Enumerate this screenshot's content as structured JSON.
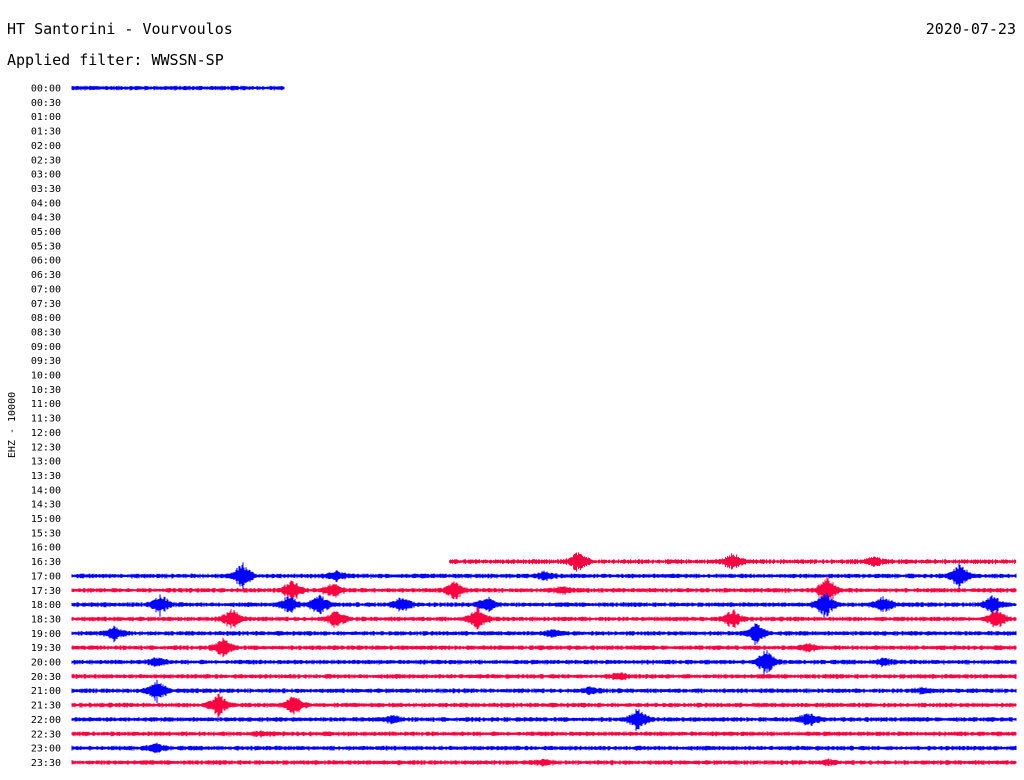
{
  "header": {
    "station": "HT Santorini - Vourvoulos",
    "date": "2020-07-23",
    "filter": "Applied filter: WWSSN-SP"
  },
  "chart_data": {
    "type": "line",
    "title": "HT Santorini - Vourvoulos",
    "subtitle": "Applied filter: WWSSN-SP",
    "ylabel": "EHZ - 10000",
    "xlabel": "",
    "grid": false,
    "colors": [
      "#0000ff",
      "#ff0040"
    ],
    "rows": [
      {
        "label": "00:00",
        "start": 0.0,
        "end": 0.225,
        "events": []
      },
      {
        "label": "00:30",
        "start": 0,
        "end": 0,
        "events": []
      },
      {
        "label": "01:00",
        "start": 0,
        "end": 0,
        "events": []
      },
      {
        "label": "01:30",
        "start": 0,
        "end": 0,
        "events": []
      },
      {
        "label": "02:00",
        "start": 0,
        "end": 0,
        "events": []
      },
      {
        "label": "02:30",
        "start": 0,
        "end": 0,
        "events": []
      },
      {
        "label": "03:00",
        "start": 0,
        "end": 0,
        "events": []
      },
      {
        "label": "03:30",
        "start": 0,
        "end": 0,
        "events": []
      },
      {
        "label": "04:00",
        "start": 0,
        "end": 0,
        "events": []
      },
      {
        "label": "04:30",
        "start": 0,
        "end": 0,
        "events": []
      },
      {
        "label": "05:00",
        "start": 0,
        "end": 0,
        "events": []
      },
      {
        "label": "05:30",
        "start": 0,
        "end": 0,
        "events": []
      },
      {
        "label": "06:00",
        "start": 0,
        "end": 0,
        "events": []
      },
      {
        "label": "06:30",
        "start": 0,
        "end": 0,
        "events": []
      },
      {
        "label": "07:00",
        "start": 0,
        "end": 0,
        "events": []
      },
      {
        "label": "07:30",
        "start": 0,
        "end": 0,
        "events": []
      },
      {
        "label": "08:00",
        "start": 0,
        "end": 0,
        "events": []
      },
      {
        "label": "08:30",
        "start": 0,
        "end": 0,
        "events": []
      },
      {
        "label": "09:00",
        "start": 0,
        "end": 0,
        "events": []
      },
      {
        "label": "09:30",
        "start": 0,
        "end": 0,
        "events": []
      },
      {
        "label": "10:00",
        "start": 0,
        "end": 0,
        "events": []
      },
      {
        "label": "10:30",
        "start": 0,
        "end": 0,
        "events": []
      },
      {
        "label": "11:00",
        "start": 0,
        "end": 0,
        "events": []
      },
      {
        "label": "11:30",
        "start": 0,
        "end": 0,
        "events": []
      },
      {
        "label": "12:00",
        "start": 0,
        "end": 0,
        "events": []
      },
      {
        "label": "12:30",
        "start": 0,
        "end": 0,
        "events": []
      },
      {
        "label": "13:00",
        "start": 0,
        "end": 0,
        "events": []
      },
      {
        "label": "13:30",
        "start": 0,
        "end": 0,
        "events": []
      },
      {
        "label": "14:00",
        "start": 0,
        "end": 0,
        "events": []
      },
      {
        "label": "14:30",
        "start": 0,
        "end": 0,
        "events": []
      },
      {
        "label": "15:00",
        "start": 0,
        "end": 0,
        "events": []
      },
      {
        "label": "15:30",
        "start": 0,
        "end": 0,
        "events": []
      },
      {
        "label": "16:00",
        "start": 0,
        "end": 0,
        "events": []
      },
      {
        "label": "16:30",
        "start": 0.4,
        "end": 1.0,
        "events": [
          [
            0.537,
            10
          ],
          [
            0.7,
            8
          ],
          [
            0.85,
            4
          ]
        ]
      },
      {
        "label": "17:00",
        "start": 0.0,
        "end": 1.0,
        "events": [
          [
            0.18,
            12
          ],
          [
            0.94,
            11
          ],
          [
            0.28,
            4
          ],
          [
            0.5,
            3
          ]
        ]
      },
      {
        "label": "17:30",
        "start": 0.0,
        "end": 1.0,
        "events": [
          [
            0.233,
            9
          ],
          [
            0.277,
            7
          ],
          [
            0.405,
            8
          ],
          [
            0.8,
            12
          ],
          [
            0.52,
            3
          ]
        ]
      },
      {
        "label": "18:00",
        "start": 0.0,
        "end": 1.0,
        "events": [
          [
            0.094,
            9
          ],
          [
            0.23,
            8
          ],
          [
            0.262,
            9
          ],
          [
            0.35,
            8
          ],
          [
            0.44,
            7
          ],
          [
            0.798,
            11
          ],
          [
            0.86,
            7
          ],
          [
            0.975,
            8
          ]
        ]
      },
      {
        "label": "18:30",
        "start": 0.0,
        "end": 1.0,
        "events": [
          [
            0.17,
            9
          ],
          [
            0.28,
            8
          ],
          [
            0.43,
            10
          ],
          [
            0.7,
            8
          ],
          [
            0.98,
            9
          ]
        ]
      },
      {
        "label": "19:00",
        "start": 0.0,
        "end": 1.0,
        "events": [
          [
            0.045,
            6
          ],
          [
            0.725,
            9
          ],
          [
            0.51,
            3
          ]
        ]
      },
      {
        "label": "19:30",
        "start": 0.0,
        "end": 1.0,
        "events": [
          [
            0.16,
            8
          ],
          [
            0.78,
            3
          ]
        ]
      },
      {
        "label": "20:00",
        "start": 0.0,
        "end": 1.0,
        "events": [
          [
            0.735,
            11
          ],
          [
            0.09,
            4
          ],
          [
            0.86,
            3
          ]
        ]
      },
      {
        "label": "20:30",
        "start": 0.0,
        "end": 1.0,
        "events": [
          [
            0.58,
            3
          ]
        ]
      },
      {
        "label": "21:00",
        "start": 0.0,
        "end": 1.0,
        "events": [
          [
            0.09,
            9
          ],
          [
            0.55,
            3
          ],
          [
            0.9,
            2
          ]
        ]
      },
      {
        "label": "21:30",
        "start": 0.0,
        "end": 1.0,
        "events": [
          [
            0.155,
            10
          ],
          [
            0.235,
            9
          ]
        ]
      },
      {
        "label": "22:00",
        "start": 0.0,
        "end": 1.0,
        "events": [
          [
            0.6,
            10
          ],
          [
            0.78,
            6
          ],
          [
            0.34,
            3
          ]
        ]
      },
      {
        "label": "22:30",
        "start": 0.0,
        "end": 1.0,
        "events": [
          [
            0.2,
            2
          ]
        ]
      },
      {
        "label": "23:00",
        "start": 0.0,
        "end": 1.0,
        "events": [
          [
            0.09,
            4
          ]
        ]
      },
      {
        "label": "23:30",
        "start": 0.0,
        "end": 1.0,
        "events": [
          [
            0.5,
            2
          ],
          [
            0.8,
            2
          ]
        ]
      }
    ]
  }
}
